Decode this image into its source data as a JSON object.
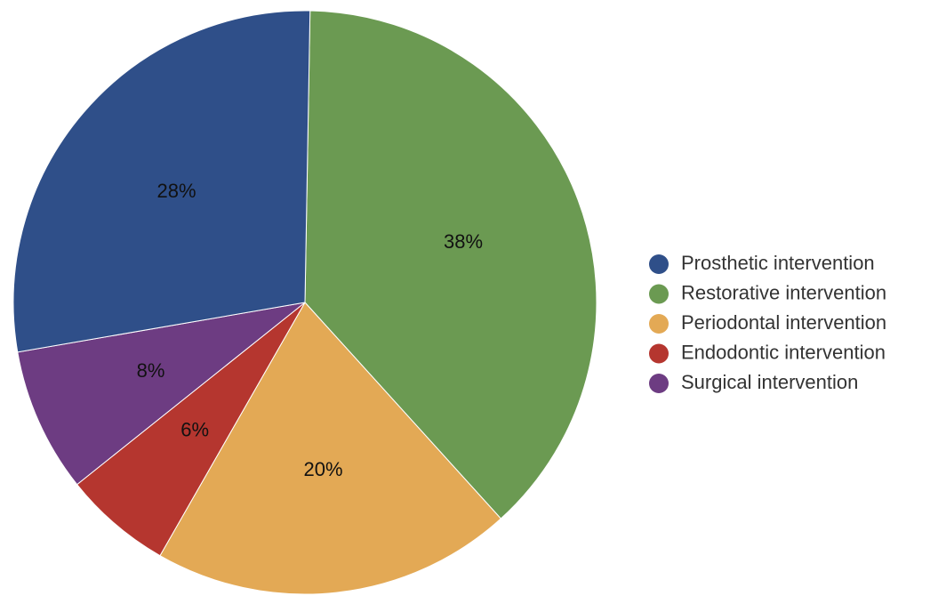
{
  "chart_data": {
    "type": "pie",
    "categories": [
      "Prosthetic intervention",
      "Restorative intervention",
      "Periodontal intervention",
      "Endodontic intervention",
      "Surgical intervention"
    ],
    "values": [
      28,
      38,
      20,
      6,
      8
    ],
    "value_labels": [
      "28%",
      "38%",
      "20%",
      "6%",
      "8%"
    ],
    "colors": [
      "#2f4f89",
      "#6b9a52",
      "#e3a955",
      "#b5362f",
      "#6d3c82"
    ],
    "legend": "right",
    "start": "12 o'clock, clockwise, beginning with Restorative intervention",
    "slice_order": [
      1,
      2,
      3,
      4,
      0
    ]
  }
}
